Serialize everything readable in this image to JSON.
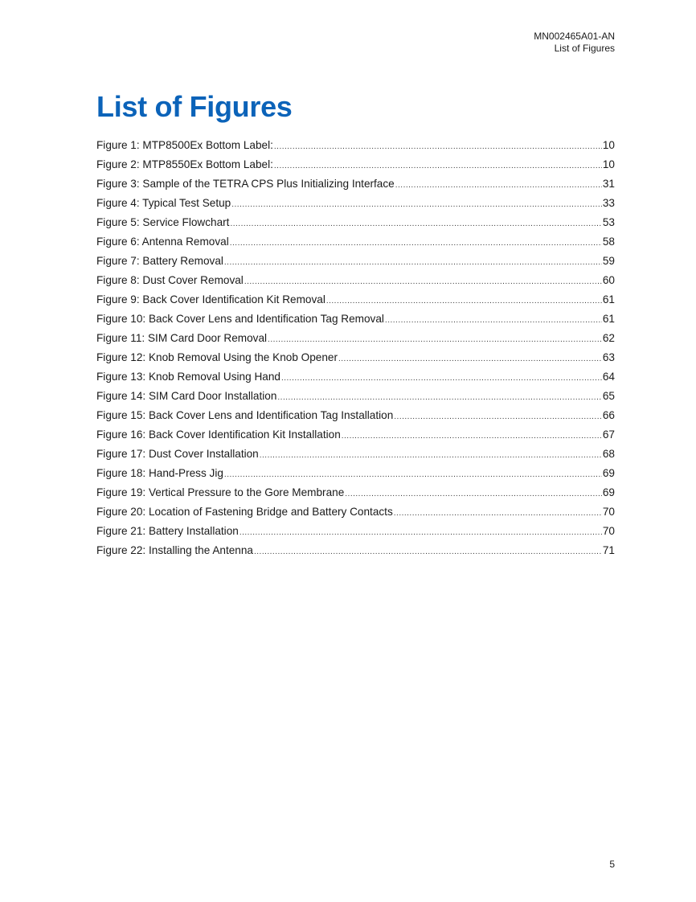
{
  "header": {
    "doc_id": "MN002465A01-AN",
    "section": "List of Figures"
  },
  "title": "List of Figures",
  "entries": [
    {
      "label": "Figure 1: MTP8500Ex Bottom Label:",
      "page": "10"
    },
    {
      "label": "Figure 2: MTP8550Ex Bottom Label:",
      "page": "10"
    },
    {
      "label": "Figure 3: Sample of the TETRA CPS Plus Initializing Interface",
      "page": "31"
    },
    {
      "label": "Figure 4: Typical Test Setup",
      "page": "33"
    },
    {
      "label": "Figure 5: Service Flowchart",
      "page": "53"
    },
    {
      "label": "Figure 6: Antenna Removal",
      "page": "58"
    },
    {
      "label": "Figure 7: Battery Removal",
      "page": "59"
    },
    {
      "label": "Figure 8: Dust Cover Removal",
      "page": "60"
    },
    {
      "label": "Figure 9: Back Cover Identification Kit Removal",
      "page": "61"
    },
    {
      "label": "Figure 10: Back Cover Lens and Identification Tag Removal",
      "page": "61"
    },
    {
      "label": "Figure 11: SIM Card Door Removal",
      "page": "62"
    },
    {
      "label": "Figure 12: Knob Removal Using the Knob Opener",
      "page": "63"
    },
    {
      "label": "Figure 13: Knob Removal Using Hand",
      "page": "64"
    },
    {
      "label": "Figure 14: SIM Card Door Installation",
      "page": "65"
    },
    {
      "label": "Figure 15: Back Cover Lens and Identification Tag Installation",
      "page": "66"
    },
    {
      "label": "Figure 16: Back Cover Identification Kit Installation",
      "page": "67"
    },
    {
      "label": "Figure 17: Dust Cover Installation",
      "page": "68"
    },
    {
      "label": "Figure 18: Hand-Press Jig",
      "page": "69"
    },
    {
      "label": "Figure 19: Vertical Pressure to the Gore Membrane",
      "page": "69"
    },
    {
      "label": "Figure 20: Location of Fastening Bridge and Battery Contacts",
      "page": "70"
    },
    {
      "label": "Figure 21: Battery Installation",
      "page": "70"
    },
    {
      "label": "Figure 22: Installing the Antenna",
      "page": "71"
    }
  ],
  "page_number": "5",
  "colors": {
    "title": "#0b63b9",
    "text": "#1a1a1a"
  }
}
